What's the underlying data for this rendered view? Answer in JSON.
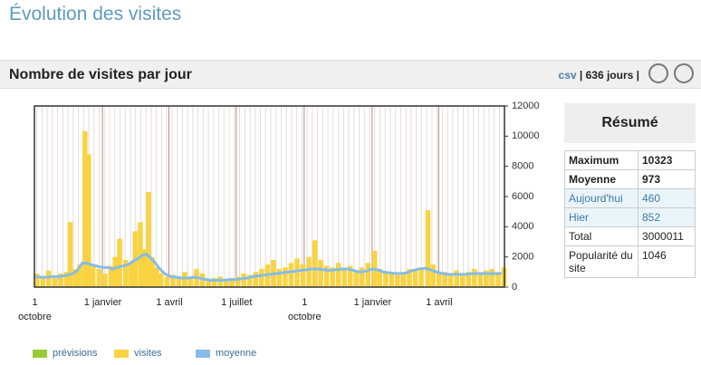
{
  "page_title": "Évolution des visites",
  "section": {
    "title": "Nombre de visites par jour",
    "csv": "csv",
    "separator": "|",
    "period": "636 jours"
  },
  "chart_data": {
    "type": "bar",
    "x": [
      0,
      8,
      16,
      24,
      32,
      40,
      45,
      52,
      58,
      65,
      70,
      76,
      84,
      92,
      100,
      106,
      112,
      120,
      127,
      133,
      140,
      146,
      151,
      156,
      162,
      168,
      176,
      184,
      192,
      200,
      208,
      216,
      224,
      232,
      240,
      248,
      256,
      264,
      272,
      280,
      288,
      296,
      304,
      312,
      320,
      328,
      336,
      344,
      352,
      360,
      368,
      376,
      384,
      392,
      400,
      408,
      416,
      424,
      432,
      440,
      448,
      457,
      464,
      472,
      480,
      488,
      496,
      504,
      512,
      520,
      529,
      536,
      544,
      552,
      560,
      568,
      576,
      584,
      592,
      600,
      608,
      616,
      624,
      632
    ],
    "series": [
      {
        "name": "prévisions",
        "color": "#99cc33"
      },
      {
        "name": "visites",
        "color": "#f9d342",
        "values": [
          900,
          700,
          1100,
          600,
          900,
          1000,
          4300,
          1200,
          1500,
          10323,
          8800,
          1500,
          1200,
          900,
          1400,
          2000,
          3200,
          1800,
          1600,
          3700,
          4300,
          2500,
          6300,
          2000,
          1300,
          900,
          700,
          800,
          600,
          1000,
          700,
          1200,
          900,
          500,
          600,
          700,
          500,
          600,
          700,
          900,
          800,
          1000,
          1200,
          1500,
          1800,
          1200,
          1300,
          1600,
          1900,
          1500,
          2000,
          3100,
          1800,
          1400,
          1300,
          1600,
          1200,
          1400,
          1000,
          1300,
          1600,
          2400,
          1200,
          900,
          1000,
          800,
          900,
          1200,
          1100,
          1300,
          5100,
          1500,
          900,
          1000,
          800,
          1100,
          900,
          1000,
          1200,
          900,
          1100,
          1200,
          1000,
          1300
        ]
      },
      {
        "name": "moyenne",
        "color": "#86bde6",
        "values": [
          700,
          650,
          650,
          700,
          700,
          750,
          800,
          900,
          1100,
          1600,
          1600,
          1500,
          1400,
          1300,
          1300,
          1200,
          1300,
          1400,
          1500,
          1700,
          1900,
          2100,
          2200,
          2000,
          1700,
          1300,
          900,
          700,
          650,
          600,
          600,
          650,
          600,
          500,
          450,
          450,
          450,
          500,
          500,
          550,
          600,
          700,
          750,
          800,
          850,
          900,
          950,
          1000,
          1050,
          1100,
          1150,
          1200,
          1200,
          1150,
          1100,
          1150,
          1200,
          1200,
          1100,
          1000,
          1050,
          1200,
          1150,
          1000,
          950,
          900,
          900,
          950,
          1100,
          1200,
          1250,
          1150,
          1000,
          900,
          850,
          850,
          850,
          850,
          900,
          900,
          900,
          900,
          900,
          900
        ]
      }
    ],
    "xlim": [
      0,
      636
    ],
    "xticks": [
      {
        "value": 0,
        "label": "1 octobre"
      },
      {
        "value": 92,
        "label": "1 janvier"
      },
      {
        "value": 182,
        "label": "1 avril"
      },
      {
        "value": 273,
        "label": "1 juillet"
      },
      {
        "value": 365,
        "label": "1 octobre"
      },
      {
        "value": 457,
        "label": "1 janvier"
      },
      {
        "value": 547,
        "label": "1 avril"
      }
    ],
    "ylim": [
      0,
      12000
    ],
    "yticks": [
      0,
      2000,
      4000,
      6000,
      8000,
      10000,
      12000
    ]
  },
  "summary": {
    "title": "Résumé",
    "rows": [
      [
        "Maximum",
        "10323"
      ],
      [
        "Moyenne",
        "973"
      ],
      [
        "Aujourd'hui",
        "460"
      ],
      [
        "Hier",
        "852"
      ],
      [
        "Total",
        "3000011"
      ],
      [
        "Popularité du site",
        "1046"
      ]
    ]
  }
}
